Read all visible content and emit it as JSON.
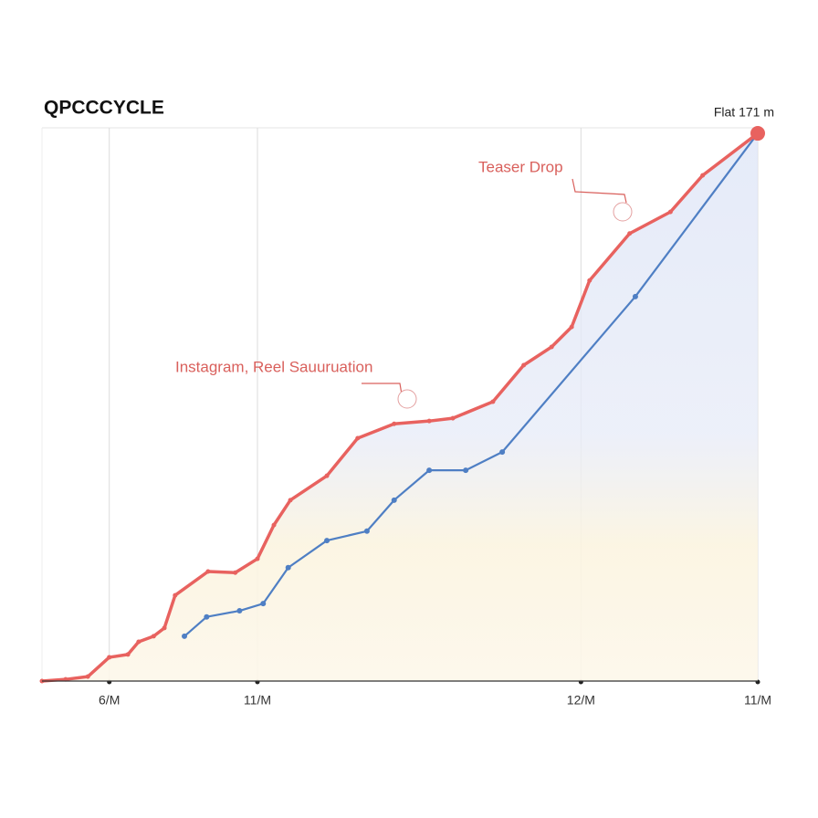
{
  "chart_data": {
    "type": "line",
    "title": "QPCCCYCLE",
    "subtitle": "Flat 171 m",
    "annotations": [
      "Instagram, Reel Sauuruation",
      "Teaser Drop"
    ],
    "xlim": [
      0,
      100
    ],
    "ylim": [
      0,
      100
    ],
    "xticks": [
      {
        "value": 9.4,
        "label": "6/M"
      },
      {
        "value": 30.1,
        "label": "11/M"
      },
      {
        "value": 75.3,
        "label": "12/M"
      },
      {
        "value": 100,
        "label": "11/M"
      }
    ],
    "grid": true,
    "series": [
      {
        "color": "#e8625f",
        "x": [
          0,
          3.3,
          6.4,
          9.4,
          12.0,
          13.5,
          15.6,
          17.1,
          18.6,
          23.2,
          27.0,
          30.1,
          32.4,
          34.7,
          39.8,
          44.1,
          49.2,
          54.1,
          57.4,
          63.0,
          67.3,
          71.2,
          74.0,
          76.5,
          82.1,
          87.8,
          92.3,
          100
        ],
        "values": [
          0,
          0.3,
          0.8,
          4.3,
          4.8,
          7.1,
          8.1,
          9.6,
          15.5,
          19.8,
          19.6,
          22.1,
          28.2,
          32.7,
          37.1,
          43.9,
          46.5,
          47.0,
          47.5,
          50.5,
          57.1,
          60.4,
          64.0,
          72.4,
          80.9,
          84.8,
          91.4,
          99.0
        ]
      },
      {
        "color": "#4f7fc4",
        "x": [
          19.9,
          23.0,
          27.6,
          30.9,
          34.4,
          39.8,
          45.4,
          49.2,
          54.1,
          59.2,
          64.3,
          82.9,
          100
        ],
        "values": [
          8.1,
          11.6,
          12.7,
          14.0,
          20.5,
          25.4,
          27.1,
          32.7,
          38.1,
          38.1,
          41.4,
          69.5,
          99.0
        ]
      }
    ]
  }
}
